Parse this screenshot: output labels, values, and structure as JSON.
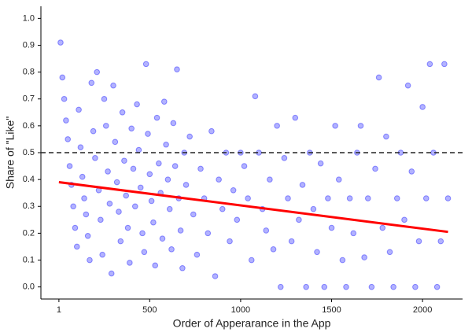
{
  "chart_data": {
    "type": "scatter",
    "xlabel": "Order of Apperarance in the App",
    "ylabel": "Share of \"Like\"",
    "xlim": [
      -98,
      2220
    ],
    "ylim": [
      -0.045,
      1.045
    ],
    "xticks": [
      1,
      500,
      1000,
      1500,
      2000
    ],
    "yticks": [
      {
        "value": 0,
        "label": "0.0"
      },
      0.1,
      0.2,
      0.3,
      0.4,
      0.5,
      0.6,
      0.7,
      0.8,
      0.9,
      {
        "value": 1,
        "label": "1.0"
      }
    ],
    "hline": 0.5,
    "trend": {
      "color": "#ff0000",
      "x": [
        1,
        2140
      ],
      "y": [
        0.39,
        0.205
      ]
    },
    "series": [
      {
        "color": "#0000ff",
        "x": [
          10,
          20,
          30,
          40,
          50,
          60,
          70,
          80,
          90,
          100,
          110,
          120,
          130,
          140,
          150,
          160,
          170,
          180,
          190,
          200,
          210,
          220,
          230,
          240,
          250,
          260,
          270,
          280,
          290,
          300,
          310,
          320,
          330,
          340,
          350,
          360,
          370,
          380,
          390,
          400,
          410,
          420,
          430,
          440,
          450,
          460,
          470,
          480,
          490,
          500,
          510,
          520,
          530,
          540,
          550,
          560,
          570,
          580,
          590,
          600,
          610,
          620,
          630,
          640,
          650,
          660,
          670,
          680,
          690,
          700,
          720,
          740,
          760,
          780,
          800,
          820,
          840,
          860,
          880,
          900,
          920,
          940,
          960,
          980,
          1000,
          1020,
          1040,
          1060,
          1080,
          1100,
          1120,
          1140,
          1160,
          1180,
          1200,
          1220,
          1240,
          1260,
          1280,
          1300,
          1320,
          1340,
          1360,
          1380,
          1400,
          1420,
          1440,
          1460,
          1480,
          1500,
          1520,
          1540,
          1560,
          1580,
          1600,
          1620,
          1640,
          1660,
          1680,
          1700,
          1720,
          1740,
          1760,
          1780,
          1800,
          1820,
          1840,
          1860,
          1880,
          1900,
          1920,
          1940,
          1960,
          1980,
          2000,
          2020,
          2040,
          2060,
          2080,
          2100,
          2120,
          2140
        ],
        "values": [
          0.91,
          0.78,
          0.7,
          0.62,
          0.55,
          0.45,
          0.38,
          0.3,
          0.22,
          0.15,
          0.66,
          0.52,
          0.41,
          0.33,
          0.27,
          0.19,
          0.1,
          0.76,
          0.58,
          0.48,
          0.8,
          0.36,
          0.25,
          0.12,
          0.7,
          0.6,
          0.43,
          0.31,
          0.05,
          0.75,
          0.54,
          0.39,
          0.28,
          0.17,
          0.65,
          0.47,
          0.34,
          0.22,
          0.09,
          0.59,
          0.44,
          0.3,
          0.68,
          0.51,
          0.37,
          0.2,
          0.13,
          0.83,
          0.57,
          0.42,
          0.32,
          0.24,
          0.08,
          0.63,
          0.46,
          0.35,
          0.18,
          0.69,
          0.53,
          0.4,
          0.29,
          0.14,
          0.61,
          0.45,
          0.81,
          0.33,
          0.21,
          0.07,
          0.5,
          0.38,
          0.56,
          0.27,
          0.12,
          0.44,
          0.33,
          0.2,
          0.58,
          0.04,
          0.4,
          0.29,
          0.5,
          0.17,
          0.36,
          0.25,
          0.5,
          0.45,
          0.33,
          0.1,
          0.71,
          0.5,
          0.29,
          0.21,
          0.4,
          0.14,
          0.6,
          0.0,
          0.48,
          0.33,
          0.17,
          0.63,
          0.25,
          0.38,
          0.0,
          0.5,
          0.29,
          0.13,
          0.46,
          0.0,
          0.33,
          0.22,
          0.6,
          0.4,
          0.1,
          0.0,
          0.33,
          0.2,
          0.5,
          0.6,
          0.11,
          0.33,
          0.0,
          0.44,
          0.78,
          0.22,
          0.56,
          0.13,
          0.0,
          0.33,
          0.5,
          0.25,
          0.75,
          0.43,
          0.0,
          0.17,
          0.67,
          0.33,
          0.83,
          0.5,
          0.0,
          0.17,
          0.83,
          0.33
        ]
      }
    ]
  }
}
